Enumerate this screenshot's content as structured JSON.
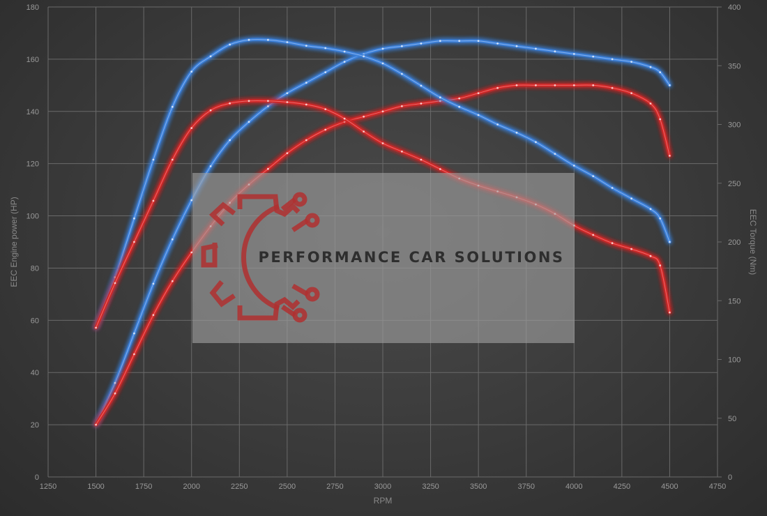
{
  "watermark": {
    "text": "PERFORMANCE CAR SOLUTIONS",
    "logo_color": "#b03030",
    "box_color": "#9a9a9a"
  },
  "chart_data": {
    "type": "line",
    "xlabel": "RPM",
    "ylabel_left": "EEC Engine power (HP)",
    "ylabel_right": "EEC Torque (Nm)",
    "xlim": [
      1250,
      4750
    ],
    "xticks": [
      1250,
      1500,
      1750,
      2000,
      2250,
      2500,
      2750,
      3000,
      3250,
      3500,
      3750,
      4000,
      4250,
      4500,
      4750
    ],
    "ylim_left": [
      0,
      180
    ],
    "yticks_left": [
      0,
      20,
      40,
      60,
      80,
      100,
      120,
      140,
      160,
      180
    ],
    "ylim_right": [
      0,
      400
    ],
    "yticks_right": [
      0,
      50,
      100,
      150,
      200,
      250,
      300,
      350,
      400
    ],
    "grid": true,
    "series": [
      {
        "axis": "left",
        "color": "#3a7fd8",
        "x": [
          1500,
          1600,
          1700,
          1800,
          1900,
          2000,
          2100,
          2200,
          2300,
          2400,
          2500,
          2600,
          2700,
          2800,
          2900,
          3000,
          3100,
          3200,
          3300,
          3400,
          3500,
          3600,
          3700,
          3800,
          3900,
          4000,
          4100,
          4200,
          4300,
          4400,
          4450,
          4500
        ],
        "values": [
          20,
          36,
          55,
          74,
          91,
          106,
          119,
          129,
          136,
          142,
          147,
          151,
          155,
          159,
          162,
          164,
          165,
          166,
          167,
          167,
          167,
          166,
          165,
          164,
          163,
          162,
          161,
          160,
          159,
          157,
          155,
          150
        ]
      },
      {
        "axis": "left",
        "color": "#d02828",
        "x": [
          1500,
          1600,
          1700,
          1800,
          1900,
          2000,
          2100,
          2200,
          2300,
          2400,
          2500,
          2600,
          2700,
          2800,
          2900,
          3000,
          3100,
          3200,
          3300,
          3400,
          3500,
          3600,
          3700,
          3800,
          3900,
          4000,
          4100,
          4200,
          4300,
          4400,
          4450,
          4500
        ],
        "values": [
          20,
          32,
          47,
          62,
          75,
          86,
          96,
          105,
          112,
          118,
          124,
          129,
          133,
          136,
          138,
          140,
          142,
          143,
          144,
          145,
          147,
          149,
          150,
          150,
          150,
          150,
          150,
          149,
          147,
          143,
          137,
          123
        ]
      },
      {
        "axis": "right",
        "color": "#3a7fd8",
        "x": [
          1500,
          1600,
          1700,
          1800,
          1900,
          2000,
          2100,
          2200,
          2300,
          2400,
          2500,
          2600,
          2700,
          2800,
          2900,
          3000,
          3100,
          3200,
          3300,
          3400,
          3500,
          3600,
          3700,
          3800,
          3900,
          4000,
          4100,
          4200,
          4300,
          4400,
          4450,
          4500
        ],
        "values": [
          127,
          170,
          220,
          270,
          315,
          345,
          358,
          368,
          372,
          372,
          370,
          367,
          365,
          362,
          358,
          352,
          343,
          333,
          323,
          315,
          308,
          300,
          293,
          285,
          275,
          265,
          256,
          246,
          237,
          228,
          220,
          200
        ]
      },
      {
        "axis": "right",
        "color": "#d02828",
        "x": [
          1500,
          1600,
          1700,
          1800,
          1900,
          2000,
          2100,
          2200,
          2300,
          2400,
          2500,
          2600,
          2700,
          2800,
          2900,
          3000,
          3100,
          3200,
          3300,
          3400,
          3500,
          3600,
          3700,
          3800,
          3900,
          4000,
          4100,
          4200,
          4300,
          4400,
          4450,
          4500
        ],
        "values": [
          127,
          165,
          200,
          235,
          270,
          297,
          312,
          318,
          320,
          320,
          319,
          317,
          313,
          305,
          294,
          284,
          277,
          270,
          262,
          254,
          248,
          243,
          238,
          232,
          224,
          214,
          206,
          199,
          194,
          188,
          180,
          140
        ]
      }
    ]
  }
}
